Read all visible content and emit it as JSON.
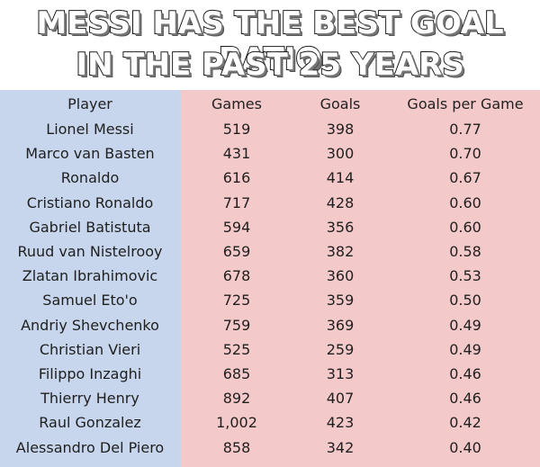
{
  "title": {
    "line1": "MESSI HAS THE BEST GOAL RATIO",
    "line2": "IN THE PAST 25 YEARS"
  },
  "table": {
    "columns": [
      "Player",
      "Games",
      "Goals",
      "Goals per Game"
    ],
    "rows": [
      {
        "player": "Lionel Messi",
        "games": "519",
        "goals": "398",
        "gpg": "0.77"
      },
      {
        "player": "Marco van Basten",
        "games": "431",
        "goals": "300",
        "gpg": "0.70"
      },
      {
        "player": "Ronaldo",
        "games": "616",
        "goals": "414",
        "gpg": "0.67"
      },
      {
        "player": "Cristiano Ronaldo",
        "games": "717",
        "goals": "428",
        "gpg": "0.60"
      },
      {
        "player": "Gabriel Batistuta",
        "games": "594",
        "goals": "356",
        "gpg": "0.60"
      },
      {
        "player": "Ruud van Nistelrooy",
        "games": "659",
        "goals": "382",
        "gpg": "0.58"
      },
      {
        "player": "Zlatan Ibrahimovic",
        "games": "678",
        "goals": "360",
        "gpg": "0.53"
      },
      {
        "player": "Samuel Eto'o",
        "games": "725",
        "goals": "359",
        "gpg": "0.50"
      },
      {
        "player": "Andriy Shevchenko",
        "games": "759",
        "goals": "369",
        "gpg": "0.49"
      },
      {
        "player": "Christian Vieri",
        "games": "525",
        "goals": "259",
        "gpg": "0.49"
      },
      {
        "player": "Filippo Inzaghi",
        "games": "685",
        "goals": "313",
        "gpg": "0.46"
      },
      {
        "player": "Thierry Henry",
        "games": "892",
        "goals": "407",
        "gpg": "0.46"
      },
      {
        "player": "Raul Gonzalez",
        "games": "1,002",
        "goals": "423",
        "gpg": "0.42"
      },
      {
        "player": "Alessandro Del Piero",
        "games": "858",
        "goals": "342",
        "gpg": "0.40"
      }
    ]
  },
  "colors": {
    "player_column_bg": "#c7d6ec",
    "stats_columns_bg": "#f4c9c9"
  }
}
